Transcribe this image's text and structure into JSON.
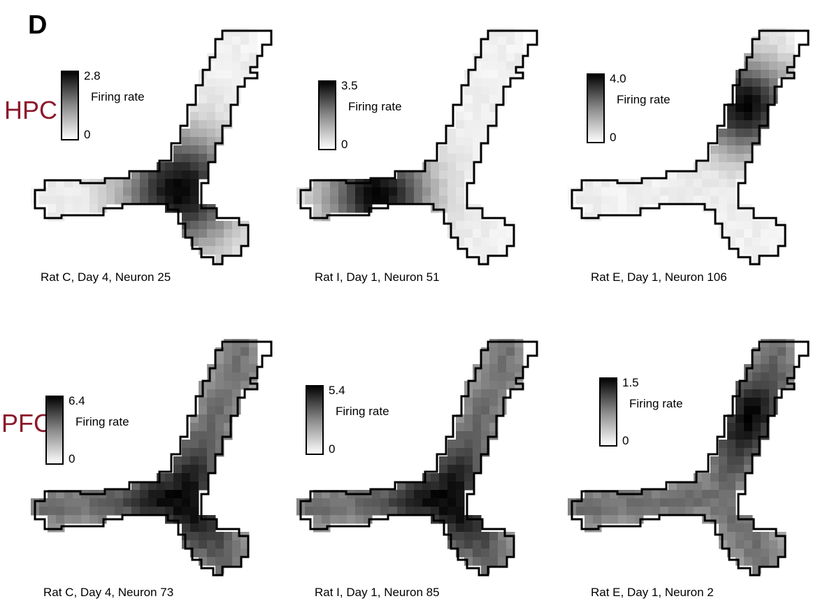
{
  "figure": {
    "panel_letter": "D",
    "row_labels": [
      {
        "text": "HPC",
        "color": "#8b1a2b"
      },
      {
        "text": "PFC",
        "color": "#8b1a2b"
      }
    ],
    "colorbar_label": "Firing rate",
    "colormap": {
      "low": "#ffffff",
      "high": "#000000"
    }
  },
  "chart_data": [
    {
      "type": "heatmap",
      "region": "HPC",
      "caption": "Rat C, Day 4, Neuron 25",
      "colorbar": {
        "min_label": "0",
        "max_label": "2.8",
        "min": 0,
        "max": 2.8
      },
      "hotspot": "junction"
    },
    {
      "type": "heatmap",
      "region": "HPC",
      "caption": "Rat I, Day 1, Neuron 51",
      "colorbar": {
        "min_label": "0",
        "max_label": "3.5",
        "min": 0,
        "max": 3.5
      },
      "hotspot": "left arm"
    },
    {
      "type": "heatmap",
      "region": "HPC",
      "caption": "Rat E, Day 1, Neuron 106",
      "colorbar": {
        "min_label": "0",
        "max_label": "4.0",
        "min": 0,
        "max": 4.0
      },
      "hotspot": "upper arm"
    },
    {
      "type": "heatmap",
      "region": "PFC",
      "caption": "Rat C, Day 4, Neuron 73",
      "colorbar": {
        "min_label": "0",
        "max_label": "6.4",
        "min": 0,
        "max": 6.4
      },
      "hotspot": "junction"
    },
    {
      "type": "heatmap",
      "region": "PFC",
      "caption": "Rat I, Day 1, Neuron 85",
      "colorbar": {
        "min_label": "0",
        "max_label": "5.4",
        "min": 0,
        "max": 5.4
      },
      "hotspot": "junction"
    },
    {
      "type": "heatmap",
      "region": "PFC",
      "caption": "Rat E, Day 1, Neuron 2",
      "colorbar": {
        "min_label": "0",
        "max_label": "1.5",
        "min": 0,
        "max": 1.5
      },
      "hotspot": "upper arm"
    }
  ]
}
